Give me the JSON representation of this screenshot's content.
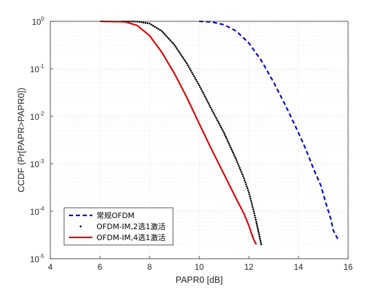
{
  "chart_data": {
    "type": "line",
    "xlabel": "PAPR0 [dB]",
    "ylabel": "CCDF (Pr[PAPR>PAPR0])",
    "xlim": [
      4,
      16
    ],
    "ylim": [
      1e-05,
      1
    ],
    "yscale": "log",
    "grid": true,
    "minor_grid": true,
    "x_ticks": [
      4,
      6,
      8,
      10,
      12,
      14,
      16
    ],
    "x_tick_labels": [
      "4",
      "6",
      "8",
      "10",
      "12",
      "14",
      "16"
    ],
    "y_ticks": [
      1e-05,
      0.0001,
      0.001,
      0.01,
      0.1,
      1
    ],
    "y_tick_labels": [
      {
        "base": "10",
        "exp": "-5"
      },
      {
        "base": "10",
        "exp": "-4"
      },
      {
        "base": "10",
        "exp": "-3"
      },
      {
        "base": "10",
        "exp": "-2"
      },
      {
        "base": "10",
        "exp": "-1"
      },
      {
        "base": "10",
        "exp": "0"
      }
    ],
    "legend_position": "bottom-left",
    "series": [
      {
        "name": "常规OFDM",
        "color": "#0000cc",
        "style": "dashed",
        "x": [
          10.0,
          10.5,
          11.0,
          11.5,
          12.0,
          12.5,
          13.0,
          13.5,
          14.0,
          14.3,
          14.6,
          14.9,
          15.1,
          15.3,
          15.4,
          15.6
        ],
        "y": [
          1.0,
          0.97,
          0.85,
          0.62,
          0.35,
          0.15,
          0.052,
          0.016,
          0.0045,
          0.002,
          0.0008,
          0.00035,
          0.00015,
          7e-05,
          4e-05,
          2.5e-05
        ]
      },
      {
        "name": "OFDM-IM,2选1激活",
        "color": "#000000",
        "style": "dotted",
        "x": [
          6.9,
          7.5,
          8.0,
          8.5,
          9.0,
          9.5,
          10.0,
          10.5,
          11.0,
          11.5,
          11.8,
          12.0,
          12.2,
          12.3,
          12.4,
          12.5
        ],
        "y": [
          1.0,
          0.99,
          0.9,
          0.62,
          0.32,
          0.13,
          0.045,
          0.014,
          0.0045,
          0.0012,
          0.0005,
          0.00025,
          0.0001,
          6e-05,
          3.5e-05,
          2e-05
        ]
      },
      {
        "name": "OFDM-IM,4选1激活",
        "color": "#dd0000",
        "style": "solid",
        "x": [
          6.0,
          7.0,
          7.5,
          8.0,
          8.5,
          9.0,
          9.5,
          10.0,
          10.5,
          11.0,
          11.5,
          11.8,
          12.0,
          12.1,
          12.2,
          12.3
        ],
        "y": [
          1.0,
          0.98,
          0.82,
          0.5,
          0.22,
          0.08,
          0.025,
          0.007,
          0.002,
          0.0006,
          0.00018,
          9e-05,
          5e-05,
          3.5e-05,
          2.5e-05,
          2e-05
        ]
      }
    ]
  }
}
